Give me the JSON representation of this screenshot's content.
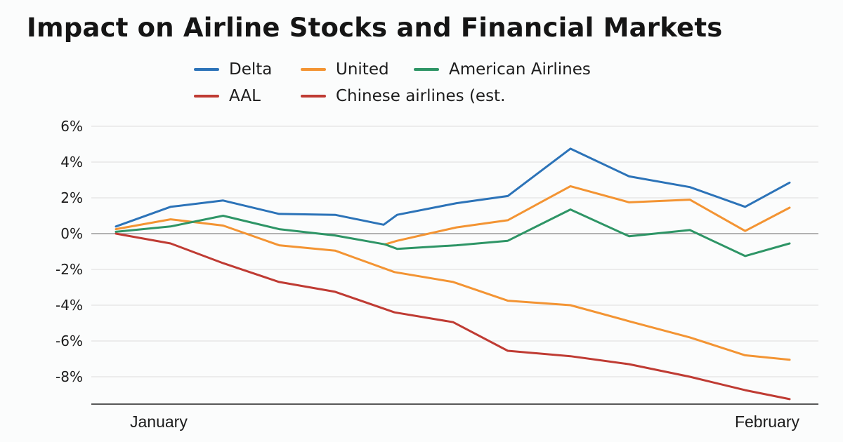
{
  "chart_data": {
    "type": "line",
    "title": "Impact on Airline Stocks and Financial Markets",
    "xlabel": "",
    "ylabel": "",
    "ylim": [
      -9.6,
      6
    ],
    "yticks": [
      6,
      4,
      2,
      0,
      -2,
      -4,
      -6,
      -8
    ],
    "ytick_labels": [
      "6%",
      "4%",
      "2%",
      "0%",
      "-2%",
      "-4%",
      "-6%",
      "-8%"
    ],
    "x_range": [
      0,
      1
    ],
    "x_tick_labels": [
      {
        "label": "January",
        "x": 0.04
      },
      {
        "label": "February",
        "x": 0.99
      }
    ],
    "grid": true,
    "legend_position": "top",
    "series": [
      {
        "name": "Delta",
        "color": "#2c73b8",
        "points": [
          [
            0.0,
            0.4
          ],
          [
            0.081,
            1.5
          ],
          [
            0.159,
            1.85
          ],
          [
            0.242,
            1.1
          ],
          [
            0.325,
            1.05
          ],
          [
            0.397,
            0.5
          ],
          [
            0.417,
            1.05
          ],
          [
            0.505,
            1.7
          ],
          [
            0.581,
            2.1
          ],
          [
            0.674,
            4.75
          ],
          [
            0.761,
            3.2
          ],
          [
            0.851,
            2.6
          ],
          [
            0.933,
            1.5
          ],
          [
            0.999,
            2.85
          ]
        ]
      },
      {
        "name": "United",
        "color": "#f39433",
        "points": [
          [
            0.0,
            0.25
          ],
          [
            0.081,
            0.8
          ],
          [
            0.159,
            0.45
          ],
          [
            0.242,
            -0.65
          ],
          [
            0.325,
            -0.95
          ],
          [
            0.413,
            -2.15
          ],
          [
            0.5,
            -2.7
          ],
          [
            0.581,
            -3.75
          ],
          [
            0.674,
            -4.0
          ],
          [
            0.761,
            -4.9
          ],
          [
            0.851,
            -5.8
          ],
          [
            0.933,
            -6.8
          ],
          [
            0.999,
            -7.05
          ]
        ]
      },
      {
        "name": "United",
        "color": "#f39433",
        "segment": "recovery",
        "points": [
          [
            0.399,
            -0.6
          ],
          [
            0.417,
            -0.4
          ],
          [
            0.505,
            0.35
          ],
          [
            0.581,
            0.75
          ],
          [
            0.674,
            2.65
          ],
          [
            0.761,
            1.75
          ],
          [
            0.851,
            1.9
          ],
          [
            0.933,
            0.15
          ],
          [
            0.999,
            1.45
          ]
        ]
      },
      {
        "name": "American Airlines",
        "color": "#2e9566",
        "points": [
          [
            0.0,
            0.1
          ],
          [
            0.081,
            0.4
          ],
          [
            0.159,
            1.0
          ],
          [
            0.242,
            0.25
          ],
          [
            0.325,
            -0.1
          ],
          [
            0.399,
            -0.6
          ],
          [
            0.417,
            -0.85
          ],
          [
            0.505,
            -0.65
          ],
          [
            0.581,
            -0.4
          ],
          [
            0.674,
            1.35
          ],
          [
            0.761,
            -0.15
          ],
          [
            0.851,
            0.2
          ],
          [
            0.933,
            -1.25
          ],
          [
            0.999,
            -0.55
          ]
        ]
      },
      {
        "name": "AAL",
        "color": "#bf3b33",
        "points": [
          [
            0.0,
            0.0
          ],
          [
            0.081,
            -0.55
          ],
          [
            0.159,
            -1.65
          ],
          [
            0.242,
            -2.7
          ],
          [
            0.325,
            -3.25
          ],
          [
            0.413,
            -4.4
          ],
          [
            0.5,
            -4.95
          ],
          [
            0.581,
            -6.55
          ],
          [
            0.674,
            -6.85
          ],
          [
            0.761,
            -7.3
          ],
          [
            0.851,
            -8.0
          ],
          [
            0.933,
            -8.75
          ],
          [
            0.999,
            -9.25
          ]
        ]
      },
      {
        "name": "Chinese airlines (est.",
        "color": "#bf3b33",
        "points": []
      }
    ]
  }
}
